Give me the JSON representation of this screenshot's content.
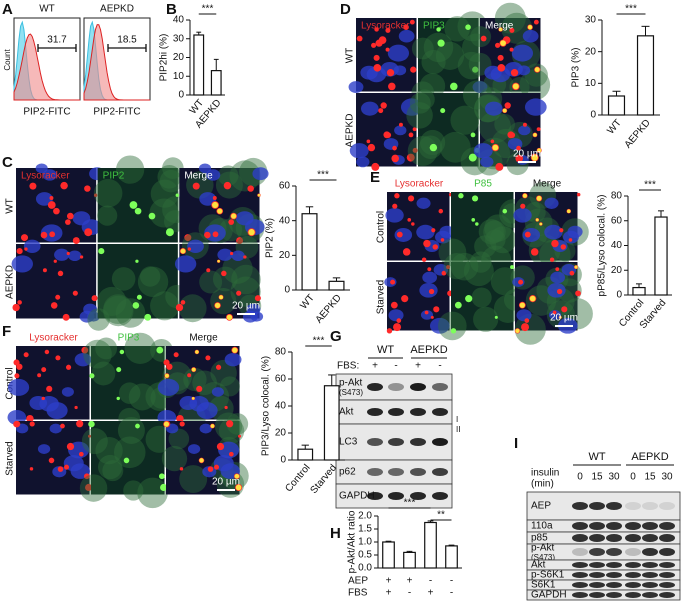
{
  "panels": {
    "A": {
      "label": "A",
      "ylabel": "Count",
      "groups": [
        {
          "title": "WT",
          "gate": 31.7,
          "xlabel": "PIP2-FITC"
        },
        {
          "title": "AEPKD",
          "gate": 18.5,
          "xlabel": "PIP2-FITC"
        }
      ]
    },
    "D": {
      "columns": [
        "Lysoracker",
        "PIP3",
        "Merge"
      ],
      "rows": [
        "WT",
        "AEPKD"
      ],
      "scale": "20 µm"
    },
    "C": {
      "columns": [
        "Lysoracker",
        "PIP2",
        "Merge"
      ],
      "rows": [
        "WT",
        "AEPKD"
      ],
      "scale": "20 µm"
    },
    "E": {
      "columns": [
        "Lysoracker",
        "P85",
        "Merge"
      ],
      "rows": [
        "Control",
        "Starved"
      ],
      "scale": "20 µm"
    },
    "F": {
      "columns": [
        "Lysoracker",
        "PIP3",
        "Merge"
      ],
      "rows": [
        "Control",
        "Starved"
      ],
      "scale": "20 µm"
    },
    "G": {
      "label": "G",
      "groups": [
        "WT",
        "AEPKD"
      ],
      "treatment": "FBS:",
      "signs": [
        "+",
        "-",
        "+",
        "-"
      ],
      "bands": [
        "p-Akt",
        "Akt",
        "LC3",
        "p62",
        "GAPDH"
      ],
      "band_note": "(S473)",
      "lc3_forms": [
        "I",
        "II"
      ]
    },
    "I": {
      "label": "I",
      "groups": [
        "WT",
        "AEPKD"
      ],
      "treatment": "insulin",
      "unit": "(min)",
      "times": [
        "0",
        "15",
        "30",
        "0",
        "15",
        "30"
      ],
      "bands": [
        "AEP",
        "110a",
        "p85",
        "p-Akt",
        "Akt",
        "p-S6K1",
        "S6K1",
        "GAPDH"
      ],
      "band_note": "(S473)"
    }
  },
  "chart_data": [
    {
      "type": "bar",
      "label": "B",
      "ylabel": "PIP2hi (%)",
      "categories": [
        "WT",
        "AEPKD"
      ],
      "values": [
        32,
        13
      ],
      "errors": [
        1.5,
        6
      ],
      "ylim": [
        0,
        40
      ],
      "yticks": [
        0,
        10,
        20,
        30,
        40
      ],
      "significance": [
        "***"
      ]
    },
    {
      "type": "bar",
      "label": "D",
      "ylabel": "PIP3 (%)",
      "categories": [
        "WT",
        "AEPKD"
      ],
      "values": [
        6,
        25
      ],
      "errors": [
        1.5,
        3
      ],
      "ylim": [
        0,
        30
      ],
      "yticks": [
        0,
        10,
        20,
        30
      ],
      "significance": [
        "***"
      ]
    },
    {
      "type": "bar",
      "label": "C",
      "ylabel": "PIP2 (%)",
      "categories": [
        "WT",
        "AEPKD"
      ],
      "values": [
        44,
        5
      ],
      "errors": [
        4,
        2
      ],
      "ylim": [
        0,
        60
      ],
      "yticks": [
        0,
        20,
        40,
        60
      ],
      "significance": [
        "***"
      ]
    },
    {
      "type": "bar",
      "label": "E",
      "ylabel": "pP85/Lyso colocal. (%)",
      "categories": [
        "Control",
        "Starved"
      ],
      "values": [
        6,
        63
      ],
      "errors": [
        3,
        5
      ],
      "ylim": [
        0,
        80
      ],
      "yticks": [
        0,
        20,
        40,
        60,
        80
      ],
      "significance": [
        "***"
      ]
    },
    {
      "type": "bar",
      "label": "F",
      "ylabel": "PIP3/Lyso colocal. (%)",
      "categories": [
        "Control",
        "Starved"
      ],
      "values": [
        8,
        55
      ],
      "errors": [
        3,
        8
      ],
      "ylim": [
        0,
        80
      ],
      "yticks": [
        0,
        20,
        40,
        60,
        80
      ],
      "significance": [
        "***"
      ]
    },
    {
      "type": "bar",
      "label": "H",
      "ylabel": "p-Akt/Akt ratio",
      "categories": [
        null,
        null,
        null,
        null
      ],
      "values": [
        1.0,
        0.6,
        1.75,
        0.85
      ],
      "errors": [
        0.03,
        0.04,
        0.06,
        0.03
      ],
      "ylim": [
        0,
        2.0
      ],
      "yticks": [
        {
          "value": 0,
          "label": "0.0"
        },
        0.5,
        {
          "value": 1.0,
          "label": "1.0"
        },
        1.5,
        {
          "value": 2.0,
          "label": "2.0"
        }
      ],
      "significance": [
        "***",
        "**"
      ],
      "rows": [
        {
          "name": "AEP",
          "signs": [
            "+",
            "+",
            "-",
            "-"
          ]
        },
        {
          "name": "FBS",
          "signs": [
            "+",
            "-",
            "+",
            "-"
          ]
        }
      ]
    }
  ]
}
